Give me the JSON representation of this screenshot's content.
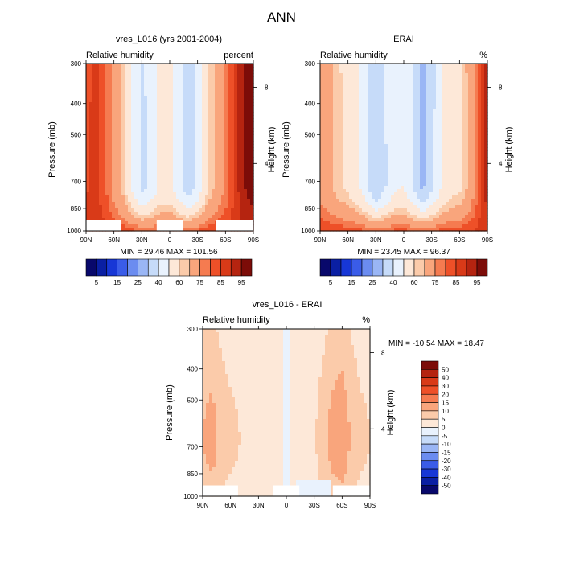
{
  "figure": {
    "title": "ANN"
  },
  "colors": {
    "abs": [
      "#08086b",
      "#0a1fa3",
      "#1737d6",
      "#3a5ce8",
      "#6b8cf0",
      "#9ab6f5",
      "#c6dbf9",
      "#e9f2fd",
      "#fde8d8",
      "#fbcbaa",
      "#f9a57c",
      "#f57b50",
      "#ee5028",
      "#d93a18",
      "#b52410",
      "#7c0c08"
    ],
    "diff": [
      "#08086b",
      "#0a1fa3",
      "#1737d6",
      "#3a5ce8",
      "#6b8cf0",
      "#9ab6f5",
      "#c6dbf9",
      "#e9f2fd",
      "#fde8d8",
      "#fbcbaa",
      "#f9a57c",
      "#f57b50",
      "#ee5028",
      "#d93a18",
      "#b52410",
      "#7c0c08"
    ]
  },
  "chart_data": [
    {
      "type": "heatmap",
      "title": "vres_L016 (yrs 2001-2004)",
      "left_label": "Relative humidity",
      "right_label": "percent",
      "ylabel": "Pressure (mb)",
      "y2label": "Height (km)",
      "xticks": [
        "90N",
        "60N",
        "30N",
        "0",
        "30S",
        "60S",
        "90S"
      ],
      "yticks": [
        "300",
        "400",
        "500",
        "700",
        "850",
        "1000"
      ],
      "y2ticks": [
        "8",
        "4"
      ],
      "stats": "MIN =  29.46   MAX = 101.56",
      "min": 29.46,
      "max": 101.56,
      "xlim": [
        90,
        -90
      ],
      "ylim": [
        300,
        1000
      ],
      "profile": {
        "lat": [
          90,
          80,
          70,
          60,
          50,
          40,
          30,
          20,
          10,
          0,
          -10,
          -20,
          -30,
          -40,
          -50,
          -60,
          -70,
          -80,
          -90
        ],
        "rh": [
          85,
          88,
          82,
          72,
          62,
          48,
          36,
          42,
          52,
          52,
          44,
          34,
          44,
          58,
          68,
          76,
          86,
          94,
          97
        ]
      },
      "surface_mask_lat": [
        [
          90,
          52
        ],
        [
          14,
          -14
        ],
        [
          -50,
          -90
        ]
      ],
      "colorbar": {
        "labels": [
          "5",
          "15",
          "25",
          "40",
          "60",
          "75",
          "85",
          "95"
        ]
      }
    },
    {
      "type": "heatmap",
      "title": "ERAI",
      "left_label": "Relative humidity",
      "right_label": "%",
      "ylabel": "Pressure (mb)",
      "y2label": "Height (km)",
      "xticks": [
        "90N",
        "60N",
        "30N",
        "0",
        "30S",
        "60S",
        "90S"
      ],
      "yticks": [
        "300",
        "400",
        "500",
        "700",
        "850",
        "1000"
      ],
      "y2ticks": [
        "8",
        "4"
      ],
      "stats": "MIN =  23.45   MAX =  96.37",
      "min": 23.45,
      "max": 96.37,
      "xlim": [
        90,
        -90
      ],
      "ylim": [
        300,
        1000
      ],
      "profile": {
        "lat": [
          90,
          80,
          70,
          60,
          50,
          40,
          30,
          20,
          10,
          0,
          -10,
          -20,
          -30,
          -40,
          -50,
          -60,
          -70,
          -80,
          -90
        ],
        "rh": [
          72,
          68,
          62,
          58,
          52,
          42,
          30,
          38,
          48,
          50,
          40,
          28,
          38,
          50,
          56,
          58,
          66,
          80,
          92
        ]
      },
      "colorbar": {
        "labels": [
          "5",
          "15",
          "25",
          "40",
          "60",
          "75",
          "85",
          "95"
        ]
      }
    },
    {
      "type": "heatmap",
      "title": "vres_L016 - ERAI",
      "left_label": "Relative humidity",
      "right_label": "%",
      "ylabel": "Pressure (mb)",
      "y2label": "Height (km)",
      "xticks": [
        "90N",
        "60N",
        "30N",
        "0",
        "30S",
        "60S",
        "90S"
      ],
      "yticks": [
        "300",
        "400",
        "500",
        "700",
        "850",
        "1000"
      ],
      "y2ticks": [
        "8",
        "4"
      ],
      "stats": "MIN = -10.54   MAX =  18.47",
      "min": -10.54,
      "max": 18.47,
      "xlim": [
        90,
        -90
      ],
      "ylim": [
        300,
        1000
      ],
      "profile": {
        "lat": [
          90,
          80,
          70,
          60,
          50,
          40,
          30,
          20,
          10,
          0,
          -10,
          -20,
          -30,
          -40,
          -50,
          -60,
          -70,
          -80,
          -90
        ],
        "rh": [
          10,
          12,
          8,
          6,
          5,
          4,
          3,
          3,
          2,
          -2,
          2,
          5,
          4,
          8,
          12,
          14,
          9,
          6,
          5
        ]
      },
      "surface_mask_lat": [
        [
          90,
          52
        ],
        [
          14,
          -14
        ],
        [
          -50,
          -90
        ]
      ],
      "colorbar": {
        "labels": [
          "50",
          "40",
          "30",
          "20",
          "15",
          "10",
          "5",
          "0",
          "-5",
          "-10",
          "-15",
          "-20",
          "-30",
          "-40",
          "-50"
        ]
      }
    }
  ]
}
